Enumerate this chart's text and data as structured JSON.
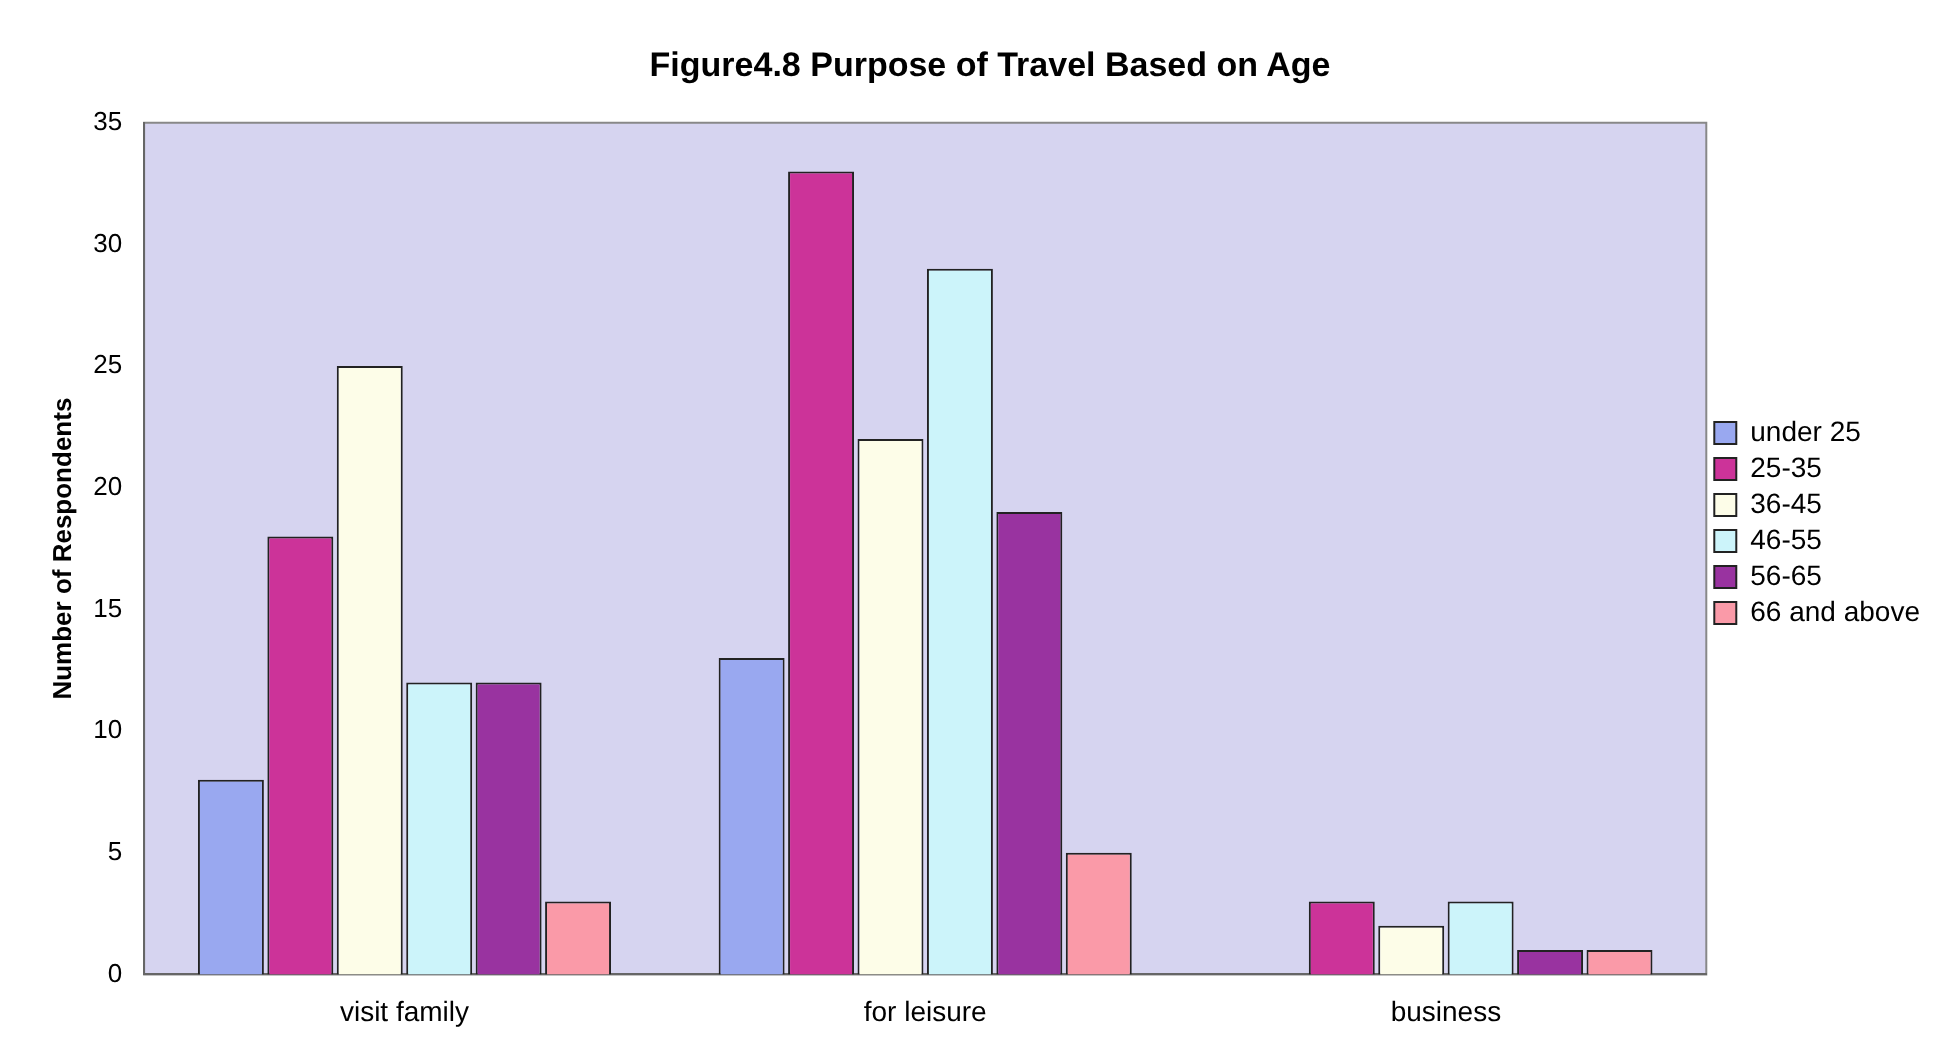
{
  "chart_data": {
    "type": "bar",
    "title": "Figure4.8 Purpose of Travel Based on Age",
    "ylabel": "Number of Respondents",
    "categories": [
      "visit family",
      "for leisure",
      "business"
    ],
    "series": [
      {
        "name": "under 25",
        "color": "#99a8f0",
        "values": [
          8,
          13,
          0
        ]
      },
      {
        "name": "25-35",
        "color": "#cc3399",
        "values": [
          18,
          33,
          3
        ]
      },
      {
        "name": "36-45",
        "color": "#fdfde8",
        "values": [
          25,
          22,
          2
        ]
      },
      {
        "name": "46-55",
        "color": "#ccf4fa",
        "values": [
          12,
          29,
          3
        ]
      },
      {
        "name": "56-65",
        "color": "#9933a0",
        "values": [
          12,
          19,
          1
        ]
      },
      {
        "name": "66 and above",
        "color": "#fa9aa8",
        "values": [
          3,
          5,
          1
        ]
      }
    ],
    "ylim": [
      0,
      35
    ],
    "yticks": [
      0,
      5,
      10,
      15,
      20,
      25,
      30,
      35
    ],
    "grid": false,
    "legend": "right"
  }
}
